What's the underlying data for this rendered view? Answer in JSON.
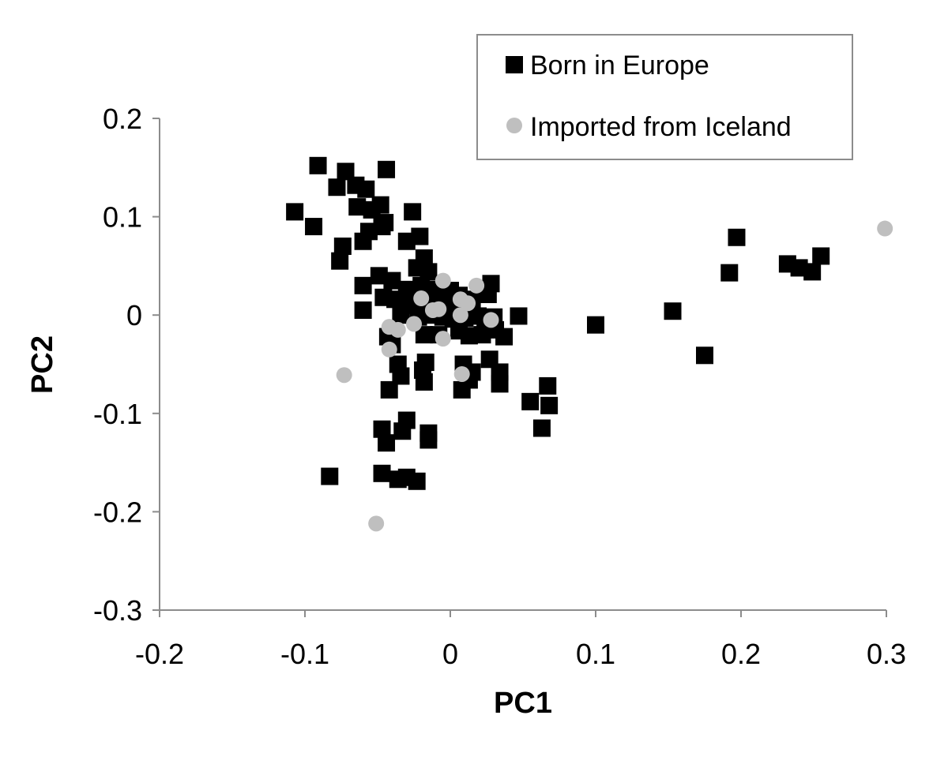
{
  "chart_data": {
    "type": "scatter",
    "title": "",
    "xlabel": "PC1",
    "ylabel": "PC2",
    "xlim": [
      -0.2,
      0.3
    ],
    "ylim": [
      -0.3,
      0.2
    ],
    "xticks": [
      "-0.2",
      "-0.1",
      "0",
      "0.1",
      "0.2",
      "0.3"
    ],
    "yticks": [
      "-0.3",
      "-0.2",
      "-0.1",
      "0",
      "0.1",
      "0.2"
    ],
    "grid": false,
    "legend": "top-right",
    "series": [
      {
        "name": "Born in Europe",
        "marker": "square",
        "color": "#000000",
        "points": [
          [
            -0.091,
            0.152
          ],
          [
            -0.072,
            0.146
          ],
          [
            -0.078,
            0.13
          ],
          [
            -0.065,
            0.132
          ],
          [
            -0.058,
            0.128
          ],
          [
            -0.044,
            0.148
          ],
          [
            -0.107,
            0.105
          ],
          [
            -0.094,
            0.09
          ],
          [
            -0.064,
            0.11
          ],
          [
            -0.054,
            0.107
          ],
          [
            -0.048,
            0.112
          ],
          [
            -0.045,
            0.094
          ],
          [
            -0.026,
            0.105
          ],
          [
            -0.074,
            0.07
          ],
          [
            -0.076,
            0.055
          ],
          [
            -0.06,
            0.075
          ],
          [
            -0.056,
            0.085
          ],
          [
            -0.047,
            0.09
          ],
          [
            -0.03,
            0.075
          ],
          [
            -0.021,
            0.08
          ],
          [
            -0.018,
            0.058
          ],
          [
            -0.023,
            0.048
          ],
          [
            -0.015,
            0.044
          ],
          [
            -0.049,
            0.04
          ],
          [
            -0.06,
            0.03
          ],
          [
            -0.04,
            0.035
          ],
          [
            -0.03,
            0.026
          ],
          [
            -0.02,
            0.03
          ],
          [
            -0.012,
            0.026
          ],
          [
            -0.006,
            0.02
          ],
          [
            0.0,
            0.025
          ],
          [
            0.006,
            0.02
          ],
          [
            0.015,
            0.016
          ],
          [
            0.026,
            0.021
          ],
          [
            0.028,
            0.032
          ],
          [
            -0.046,
            0.018
          ],
          [
            -0.038,
            0.016
          ],
          [
            -0.033,
            0.01
          ],
          [
            -0.027,
            0.014
          ],
          [
            -0.018,
            0.008
          ],
          [
            -0.01,
            0.012
          ],
          [
            -0.002,
            0.005
          ],
          [
            0.004,
            0.01
          ],
          [
            -0.06,
            0.005
          ],
          [
            -0.034,
            0.0
          ],
          [
            -0.022,
            -0.002
          ],
          [
            -0.014,
            0.0
          ],
          [
            -0.005,
            -0.002
          ],
          [
            0.002,
            -0.004
          ],
          [
            0.01,
            -0.003
          ],
          [
            0.019,
            -0.001
          ],
          [
            0.024,
            -0.004
          ],
          [
            0.03,
            -0.002
          ],
          [
            0.047,
            -0.001
          ],
          [
            0.1,
            -0.01
          ],
          [
            -0.043,
            -0.022
          ],
          [
            -0.04,
            -0.03
          ],
          [
            -0.018,
            -0.02
          ],
          [
            -0.008,
            -0.02
          ],
          [
            0.006,
            -0.016
          ],
          [
            0.013,
            -0.021
          ],
          [
            0.022,
            -0.02
          ],
          [
            0.031,
            -0.015
          ],
          [
            0.037,
            -0.022
          ],
          [
            -0.036,
            -0.05
          ],
          [
            -0.034,
            -0.062
          ],
          [
            -0.019,
            -0.056
          ],
          [
            -0.017,
            -0.048
          ],
          [
            -0.018,
            -0.068
          ],
          [
            0.009,
            -0.05
          ],
          [
            0.015,
            -0.058
          ],
          [
            0.027,
            -0.045
          ],
          [
            0.034,
            -0.058
          ],
          [
            0.034,
            -0.07
          ],
          [
            0.013,
            -0.066
          ],
          [
            0.008,
            -0.076
          ],
          [
            -0.042,
            -0.076
          ],
          [
            0.055,
            -0.088
          ],
          [
            0.067,
            -0.072
          ],
          [
            0.068,
            -0.092
          ],
          [
            0.063,
            -0.115
          ],
          [
            -0.03,
            -0.107
          ],
          [
            -0.033,
            -0.118
          ],
          [
            -0.047,
            -0.116
          ],
          [
            -0.044,
            -0.13
          ],
          [
            -0.015,
            -0.12
          ],
          [
            -0.015,
            -0.127
          ],
          [
            -0.047,
            -0.161
          ],
          [
            -0.036,
            -0.167
          ],
          [
            -0.03,
            -0.165
          ],
          [
            -0.023,
            -0.169
          ],
          [
            -0.083,
            -0.164
          ],
          [
            0.153,
            0.004
          ],
          [
            0.175,
            -0.041
          ],
          [
            0.192,
            0.043
          ],
          [
            0.197,
            0.079
          ],
          [
            0.232,
            0.052
          ],
          [
            0.24,
            0.048
          ],
          [
            0.249,
            0.044
          ],
          [
            0.255,
            0.06
          ]
        ]
      },
      {
        "name": "Imported from Iceland",
        "marker": "circle",
        "color": "#bfbfbf",
        "points": [
          [
            -0.005,
            0.035
          ],
          [
            0.018,
            0.03
          ],
          [
            -0.02,
            0.017
          ],
          [
            0.007,
            0.016
          ],
          [
            0.012,
            0.012
          ],
          [
            -0.012,
            0.005
          ],
          [
            -0.008,
            0.006
          ],
          [
            0.007,
            0.0
          ],
          [
            0.028,
            -0.005
          ],
          [
            -0.025,
            -0.009
          ],
          [
            -0.042,
            -0.012
          ],
          [
            -0.036,
            -0.015
          ],
          [
            -0.005,
            -0.024
          ],
          [
            -0.042,
            -0.035
          ],
          [
            -0.073,
            -0.061
          ],
          [
            0.008,
            -0.06
          ],
          [
            -0.051,
            -0.212
          ],
          [
            0.299,
            0.088
          ]
        ]
      }
    ]
  }
}
